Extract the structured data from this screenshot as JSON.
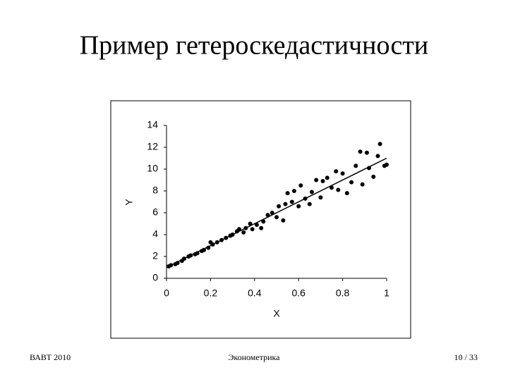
{
  "title": "Пример гетероскедастичности",
  "chart_data": {
    "type": "scatter",
    "xlabel": "X",
    "ylabel": "Y",
    "x": [
      0.01,
      0.02,
      0.04,
      0.05,
      0.07,
      0.08,
      0.1,
      0.11,
      0.13,
      0.14,
      0.16,
      0.17,
      0.19,
      0.2,
      0.21,
      0.23,
      0.25,
      0.27,
      0.29,
      0.3,
      0.32,
      0.33,
      0.35,
      0.36,
      0.38,
      0.39,
      0.41,
      0.43,
      0.44,
      0.46,
      0.48,
      0.5,
      0.51,
      0.53,
      0.54,
      0.55,
      0.57,
      0.58,
      0.6,
      0.61,
      0.63,
      0.65,
      0.66,
      0.68,
      0.7,
      0.71,
      0.73,
      0.75,
      0.77,
      0.78,
      0.8,
      0.82,
      0.84,
      0.86,
      0.88,
      0.89,
      0.91,
      0.92,
      0.94,
      0.96,
      0.97,
      0.99,
      1.0
    ],
    "values": [
      1.1,
      1.2,
      1.3,
      1.4,
      1.6,
      1.8,
      2.0,
      2.1,
      2.2,
      2.3,
      2.5,
      2.6,
      2.8,
      3.3,
      3.1,
      3.3,
      3.5,
      3.7,
      3.9,
      4.0,
      4.3,
      4.5,
      4.2,
      4.6,
      5.0,
      4.5,
      4.9,
      4.6,
      5.2,
      5.8,
      6.0,
      5.6,
      6.6,
      5.3,
      6.8,
      7.8,
      7.0,
      8.0,
      6.6,
      8.5,
      7.3,
      6.8,
      7.9,
      9.0,
      7.4,
      8.9,
      9.2,
      8.3,
      9.8,
      8.1,
      9.6,
      7.8,
      8.8,
      10.3,
      11.6,
      8.6,
      11.5,
      10.1,
      9.3,
      11.2,
      12.3,
      10.3,
      10.4
    ],
    "color": "#000000",
    "trendline": {
      "x": [
        0,
        1
      ],
      "y": [
        1.0,
        11.0
      ]
    },
    "xlim": [
      0,
      1
    ],
    "xticks": [
      0,
      0.2,
      0.4,
      0.6,
      0.8,
      1
    ],
    "ylim": [
      0,
      14
    ],
    "yticks": [
      0,
      2,
      4,
      6,
      8,
      10,
      12,
      14
    ]
  },
  "footer": {
    "left": "ВАВТ 2010",
    "center": "Эконометрика",
    "right": "10 / 33"
  }
}
